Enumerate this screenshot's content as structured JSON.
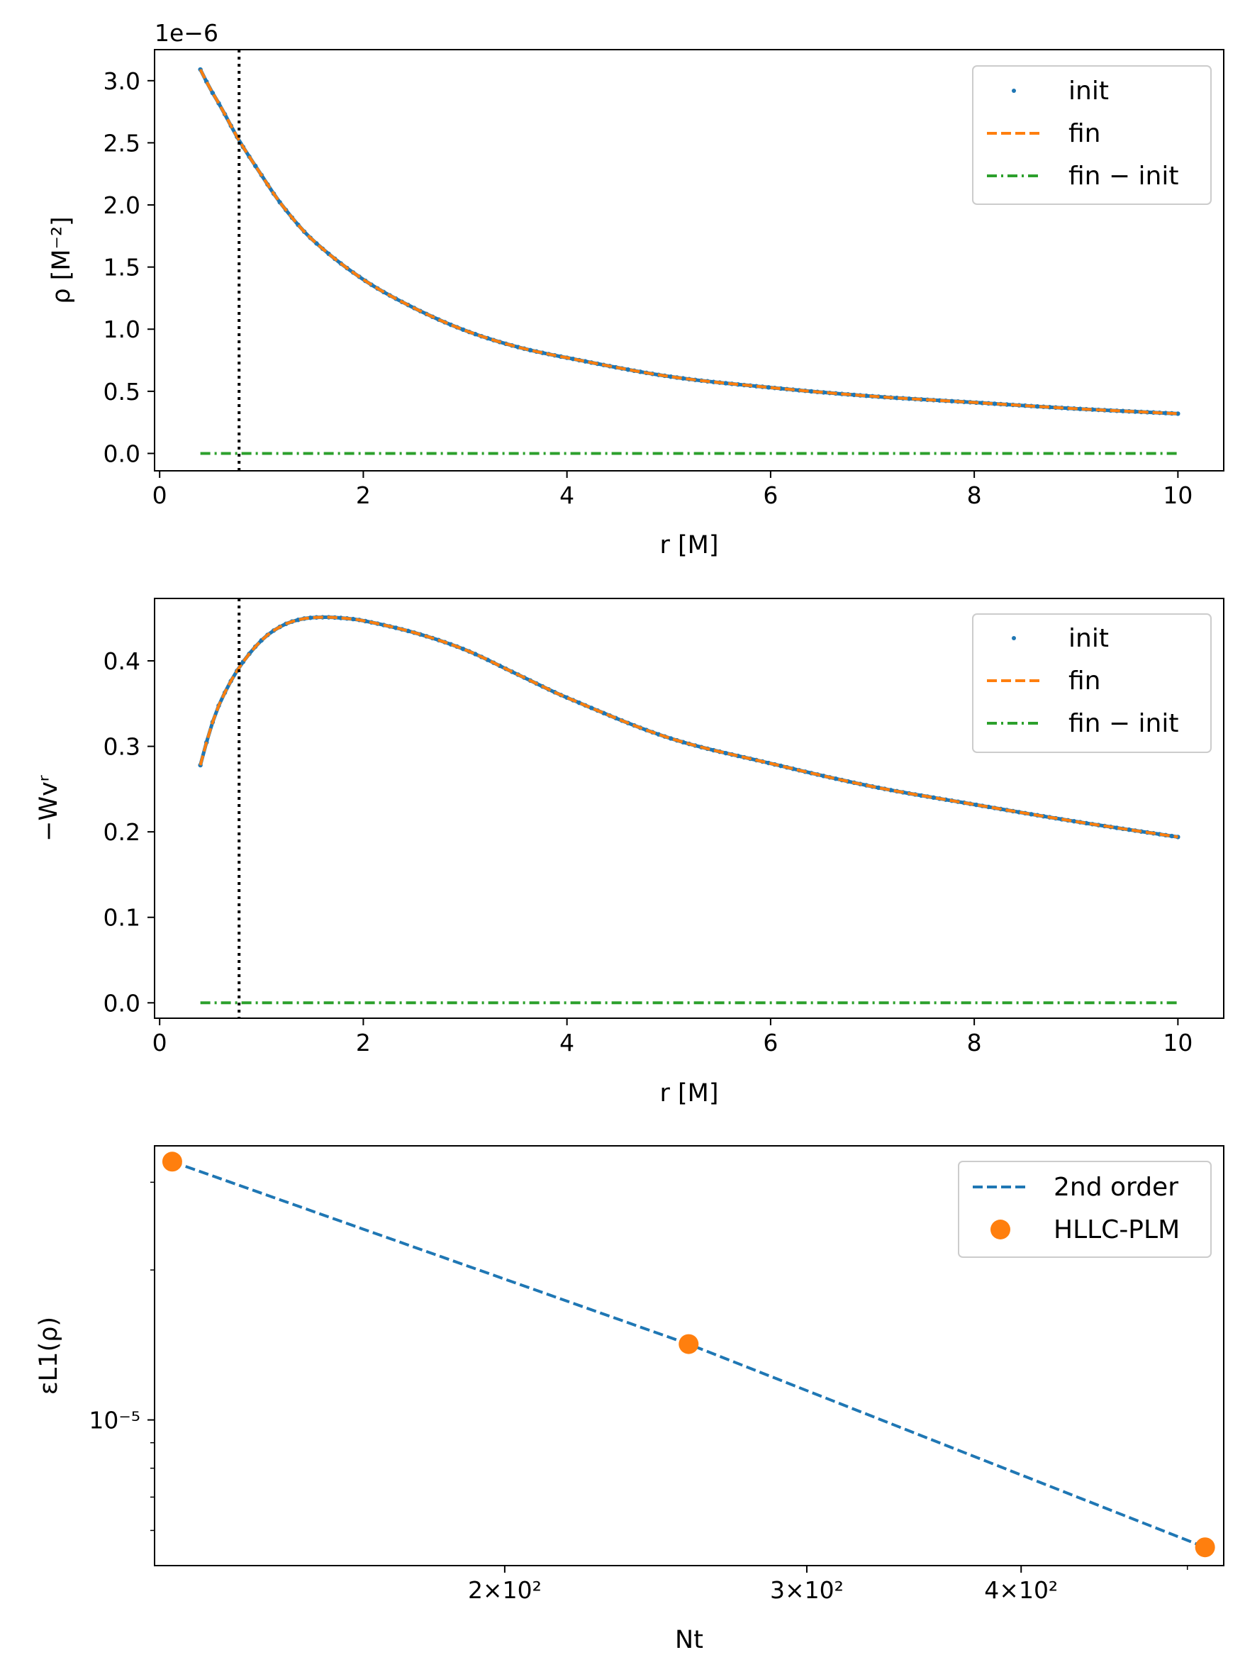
{
  "figure": {
    "background": "#ffffff"
  },
  "colors": {
    "init": "#1f77b4",
    "fin": "#ff7f0e",
    "diff": "#2ca02c",
    "vline": "#000000"
  },
  "chart_data": [
    {
      "type": "line",
      "title": "",
      "xlabel": "r [M]",
      "ylabel": "ρ [M⁻²]",
      "offset_label": "1e−6",
      "xlim": [
        -0.05,
        10.45
      ],
      "ylim": [
        -0.14,
        3.25
      ],
      "x_ticks": [
        0,
        2,
        4,
        6,
        8,
        10
      ],
      "x_tick_labels": [
        "0",
        "2",
        "4",
        "6",
        "8",
        "10"
      ],
      "y_ticks": [
        0.0,
        0.5,
        1.0,
        1.5,
        2.0,
        2.5,
        3.0
      ],
      "y_tick_labels": [
        "0.0",
        "0.5",
        "1.0",
        "1.5",
        "2.0",
        "2.5",
        "3.0"
      ],
      "vline_x": 0.78,
      "legend": {
        "position": "top-right",
        "entries": [
          "init",
          "fin",
          "fin − init"
        ]
      },
      "curve": {
        "x": [
          0.4,
          0.5,
          0.6,
          0.78,
          1.0,
          1.2,
          1.5,
          2.0,
          2.5,
          3.0,
          3.5,
          4.0,
          5.0,
          6.0,
          7.0,
          8.0,
          9.0,
          10.0
        ],
        "y": [
          3.09,
          2.93,
          2.79,
          2.52,
          2.24,
          2.0,
          1.72,
          1.4,
          1.17,
          0.99,
          0.86,
          0.77,
          0.62,
          0.53,
          0.46,
          0.41,
          0.36,
          0.32
        ]
      },
      "series": [
        {
          "name": "init",
          "style": "dots",
          "values_ref": "curve"
        },
        {
          "name": "fin",
          "style": "dashed",
          "values_ref": "curve"
        },
        {
          "name": "fin − init",
          "style": "dashdot",
          "x": [
            0.4,
            10.0
          ],
          "y": [
            0.0,
            0.0
          ]
        }
      ]
    },
    {
      "type": "line",
      "title": "",
      "xlabel": "r [M]",
      "ylabel": "−Wvʳ",
      "xlim": [
        -0.05,
        10.45
      ],
      "ylim": [
        -0.018,
        0.473
      ],
      "x_ticks": [
        0,
        2,
        4,
        6,
        8,
        10
      ],
      "x_tick_labels": [
        "0",
        "2",
        "4",
        "6",
        "8",
        "10"
      ],
      "y_ticks": [
        0.0,
        0.1,
        0.2,
        0.3,
        0.4
      ],
      "y_tick_labels": [
        "0.0",
        "0.1",
        "0.2",
        "0.3",
        "0.4"
      ],
      "vline_x": 0.78,
      "legend": {
        "position": "top-right",
        "entries": [
          "init",
          "fin",
          "fin − init"
        ]
      },
      "curve": {
        "x": [
          0.4,
          0.5,
          0.6,
          0.78,
          1.0,
          1.2,
          1.4,
          1.6,
          1.8,
          2.0,
          2.5,
          3.0,
          3.5,
          4.0,
          5.0,
          6.0,
          7.0,
          8.0,
          9.0,
          10.0
        ],
        "y": [
          0.278,
          0.321,
          0.353,
          0.392,
          0.424,
          0.441,
          0.449,
          0.451,
          0.45,
          0.447,
          0.433,
          0.413,
          0.385,
          0.357,
          0.31,
          0.28,
          0.253,
          0.232,
          0.212,
          0.194
        ]
      },
      "series": [
        {
          "name": "init",
          "style": "dots",
          "values_ref": "curve"
        },
        {
          "name": "fin",
          "style": "dashed",
          "values_ref": "curve"
        },
        {
          "name": "fin − init",
          "style": "dashdot",
          "x": [
            0.4,
            10.0
          ],
          "y": [
            0.0,
            0.0
          ]
        }
      ]
    },
    {
      "type": "scatter",
      "title": "",
      "xlabel": "Nt",
      "ylabel": "εL1(ρ)",
      "xscale": "log",
      "yscale": "log",
      "xlim": [
        125,
        525
      ],
      "ylim": [
        5.1e-06,
        3.55e-05
      ],
      "x_ticks": [
        200,
        300,
        400
      ],
      "x_tick_labels": [
        "2×10²",
        "3×10²",
        "4×10²"
      ],
      "y_ticks": [
        1e-05
      ],
      "y_tick_labels": [
        "10⁻⁵"
      ],
      "legend": {
        "position": "top-right",
        "entries": [
          "2nd order",
          "HLLC-PLM"
        ]
      },
      "series": [
        {
          "name": "2nd order",
          "style": "dashed",
          "x": [
            128,
            256,
            512
          ],
          "y": [
            3.3e-05,
            1.42e-05,
            5.55e-06
          ]
        },
        {
          "name": "HLLC-PLM",
          "style": "markers",
          "x": [
            128,
            256,
            512
          ],
          "y": [
            3.3e-05,
            1.42e-05,
            5.55e-06
          ]
        }
      ]
    }
  ]
}
